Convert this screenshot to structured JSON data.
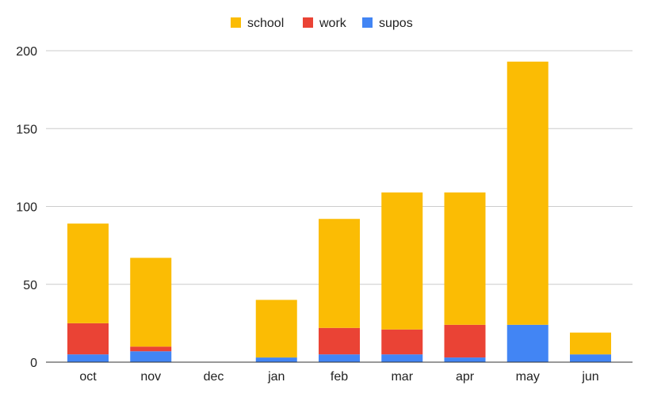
{
  "chart_data": {
    "type": "bar",
    "stacked": true,
    "title": "",
    "xlabel": "",
    "ylabel": "",
    "categories": [
      "oct",
      "nov",
      "dec",
      "jan",
      "feb",
      "mar",
      "apr",
      "may",
      "jun"
    ],
    "series": [
      {
        "name": "supos",
        "color": "#4285f4",
        "values": [
          5,
          7,
          0,
          3,
          5,
          5,
          3,
          24,
          5
        ]
      },
      {
        "name": "work",
        "color": "#ea4335",
        "values": [
          20,
          3,
          0,
          0,
          17,
          16,
          21,
          0,
          0
        ]
      },
      {
        "name": "school",
        "color": "#fbbc04",
        "values": [
          64,
          57,
          0,
          37,
          70,
          88,
          85,
          169,
          14
        ]
      }
    ],
    "legend_order": [
      "school",
      "work",
      "supos"
    ],
    "legend_position": "top-center",
    "ylim": [
      0,
      200
    ],
    "yticks": [
      "0",
      "50",
      "100",
      "150",
      "200"
    ],
    "grid": true
  }
}
